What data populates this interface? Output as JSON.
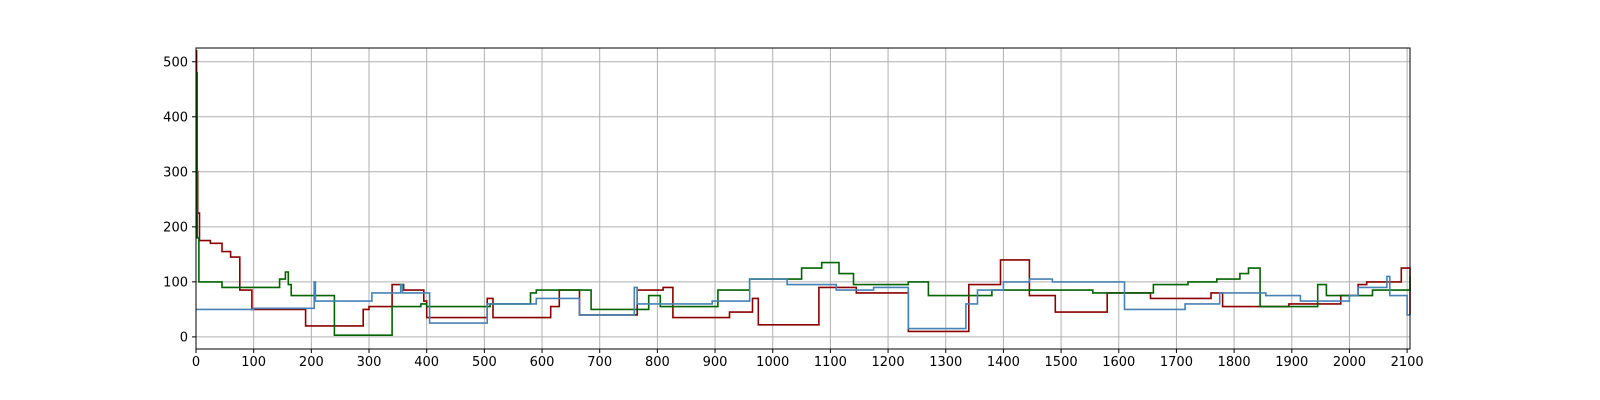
{
  "chart_data": {
    "type": "line",
    "title": "",
    "xlabel": "",
    "ylabel": "",
    "xlim": [
      0,
      2105
    ],
    "ylim": [
      -22,
      525
    ],
    "grid": true,
    "legend": "none",
    "x_ticks": [
      0,
      100,
      200,
      300,
      400,
      500,
      600,
      700,
      800,
      900,
      1000,
      1100,
      1200,
      1300,
      1400,
      1500,
      1600,
      1700,
      1800,
      1900,
      2000,
      2100
    ],
    "y_ticks": [
      0,
      100,
      200,
      300,
      400,
      500
    ],
    "series": [
      {
        "color": "#8b0000",
        "step": true,
        "points": [
          [
            0,
            520
          ],
          [
            1,
            300
          ],
          [
            3,
            225
          ],
          [
            6,
            175
          ],
          [
            25,
            170
          ],
          [
            45,
            155
          ],
          [
            60,
            145
          ],
          [
            76,
            85
          ],
          [
            97,
            50
          ],
          [
            190,
            20
          ],
          [
            240,
            20
          ],
          [
            290,
            50
          ],
          [
            300,
            55
          ],
          [
            340,
            95
          ],
          [
            360,
            85
          ],
          [
            395,
            65
          ],
          [
            400,
            35
          ],
          [
            500,
            35
          ],
          [
            505,
            70
          ],
          [
            515,
            35
          ],
          [
            615,
            55
          ],
          [
            630,
            85
          ],
          [
            665,
            40
          ],
          [
            765,
            85
          ],
          [
            810,
            90
          ],
          [
            827,
            35
          ],
          [
            925,
            45
          ],
          [
            965,
            70
          ],
          [
            975,
            22
          ],
          [
            1080,
            90
          ],
          [
            1145,
            80
          ],
          [
            1235,
            10
          ],
          [
            1340,
            95
          ],
          [
            1395,
            140
          ],
          [
            1445,
            75
          ],
          [
            1490,
            45
          ],
          [
            1580,
            80
          ],
          [
            1625,
            80
          ],
          [
            1655,
            70
          ],
          [
            1760,
            80
          ],
          [
            1780,
            55
          ],
          [
            1880,
            55
          ],
          [
            1895,
            60
          ],
          [
            1945,
            60
          ],
          [
            1985,
            75
          ],
          [
            2015,
            95
          ],
          [
            2030,
            100
          ],
          [
            2090,
            125
          ],
          [
            2105,
            40
          ]
        ]
      },
      {
        "color": "#006400",
        "step": true,
        "points": [
          [
            0,
            480
          ],
          [
            2,
            180
          ],
          [
            5,
            100
          ],
          [
            45,
            90
          ],
          [
            145,
            105
          ],
          [
            155,
            118
          ],
          [
            160,
            95
          ],
          [
            165,
            75
          ],
          [
            240,
            3
          ],
          [
            340,
            55
          ],
          [
            390,
            60
          ],
          [
            400,
            55
          ],
          [
            500,
            55
          ],
          [
            510,
            60
          ],
          [
            580,
            80
          ],
          [
            590,
            85
          ],
          [
            685,
            50
          ],
          [
            755,
            50
          ],
          [
            785,
            75
          ],
          [
            805,
            55
          ],
          [
            905,
            85
          ],
          [
            960,
            105
          ],
          [
            1050,
            125
          ],
          [
            1085,
            135
          ],
          [
            1115,
            115
          ],
          [
            1140,
            95
          ],
          [
            1235,
            100
          ],
          [
            1270,
            75
          ],
          [
            1380,
            85
          ],
          [
            1490,
            85
          ],
          [
            1555,
            80
          ],
          [
            1660,
            95
          ],
          [
            1720,
            100
          ],
          [
            1770,
            105
          ],
          [
            1810,
            115
          ],
          [
            1825,
            125
          ],
          [
            1845,
            55
          ],
          [
            1945,
            95
          ],
          [
            1960,
            75
          ],
          [
            1995,
            75
          ],
          [
            2025,
            75
          ],
          [
            2040,
            85
          ],
          [
            2105,
            110
          ]
        ]
      },
      {
        "color": "#4682b4",
        "step": true,
        "points": [
          [
            0,
            50
          ],
          [
            100,
            52
          ],
          [
            205,
            100
          ],
          [
            207,
            65
          ],
          [
            305,
            80
          ],
          [
            355,
            95
          ],
          [
            358,
            80
          ],
          [
            405,
            25
          ],
          [
            505,
            60
          ],
          [
            590,
            70
          ],
          [
            665,
            40
          ],
          [
            760,
            90
          ],
          [
            765,
            60
          ],
          [
            895,
            65
          ],
          [
            960,
            105
          ],
          [
            1025,
            95
          ],
          [
            1110,
            85
          ],
          [
            1175,
            90
          ],
          [
            1235,
            15
          ],
          [
            1335,
            60
          ],
          [
            1355,
            85
          ],
          [
            1400,
            100
          ],
          [
            1445,
            105
          ],
          [
            1485,
            100
          ],
          [
            1610,
            50
          ],
          [
            1715,
            60
          ],
          [
            1775,
            80
          ],
          [
            1855,
            75
          ],
          [
            1915,
            65
          ],
          [
            2000,
            75
          ],
          [
            2015,
            90
          ],
          [
            2065,
            110
          ],
          [
            2070,
            75
          ],
          [
            2100,
            40
          ]
        ]
      }
    ]
  }
}
